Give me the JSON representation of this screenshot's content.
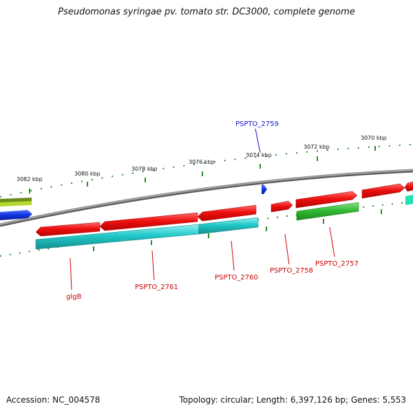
{
  "title": "Pseudomonas syringae pv. tomato str. DC3000, complete genome",
  "kbp_labels": [
    "3082 kbp",
    "3080 kbp",
    "3078 kbp",
    "3076 kbp",
    "3074 kbp",
    "3072 kbp",
    "3070 kbp"
  ],
  "gene_labels": [
    {
      "text": "PSPTO_2759",
      "color": "#1010cc"
    },
    {
      "text": "glgB",
      "color": "#cc0000"
    },
    {
      "text": "PSPTO_2761",
      "color": "#cc0000"
    },
    {
      "text": "PSPTO_2760",
      "color": "#cc0000"
    },
    {
      "text": "PSPTO_2758",
      "color": "#cc0000"
    },
    {
      "text": "PSPTO_2757",
      "color": "#cc0000"
    }
  ],
  "colors": {
    "backbone": "#8c8c8c",
    "tick": "#2a8a2a",
    "forward_cds": "#ee1111",
    "reverse_cds": "#22c8c8",
    "green_feature": "#33bb33",
    "blue_feature": "#1133dd",
    "olive_feature": "#6a8a1a"
  },
  "footer": {
    "accession": "Accession: NC_004578",
    "summary": "Topology: circular; Length: 6,397,126 bp; Genes: 5,553"
  }
}
